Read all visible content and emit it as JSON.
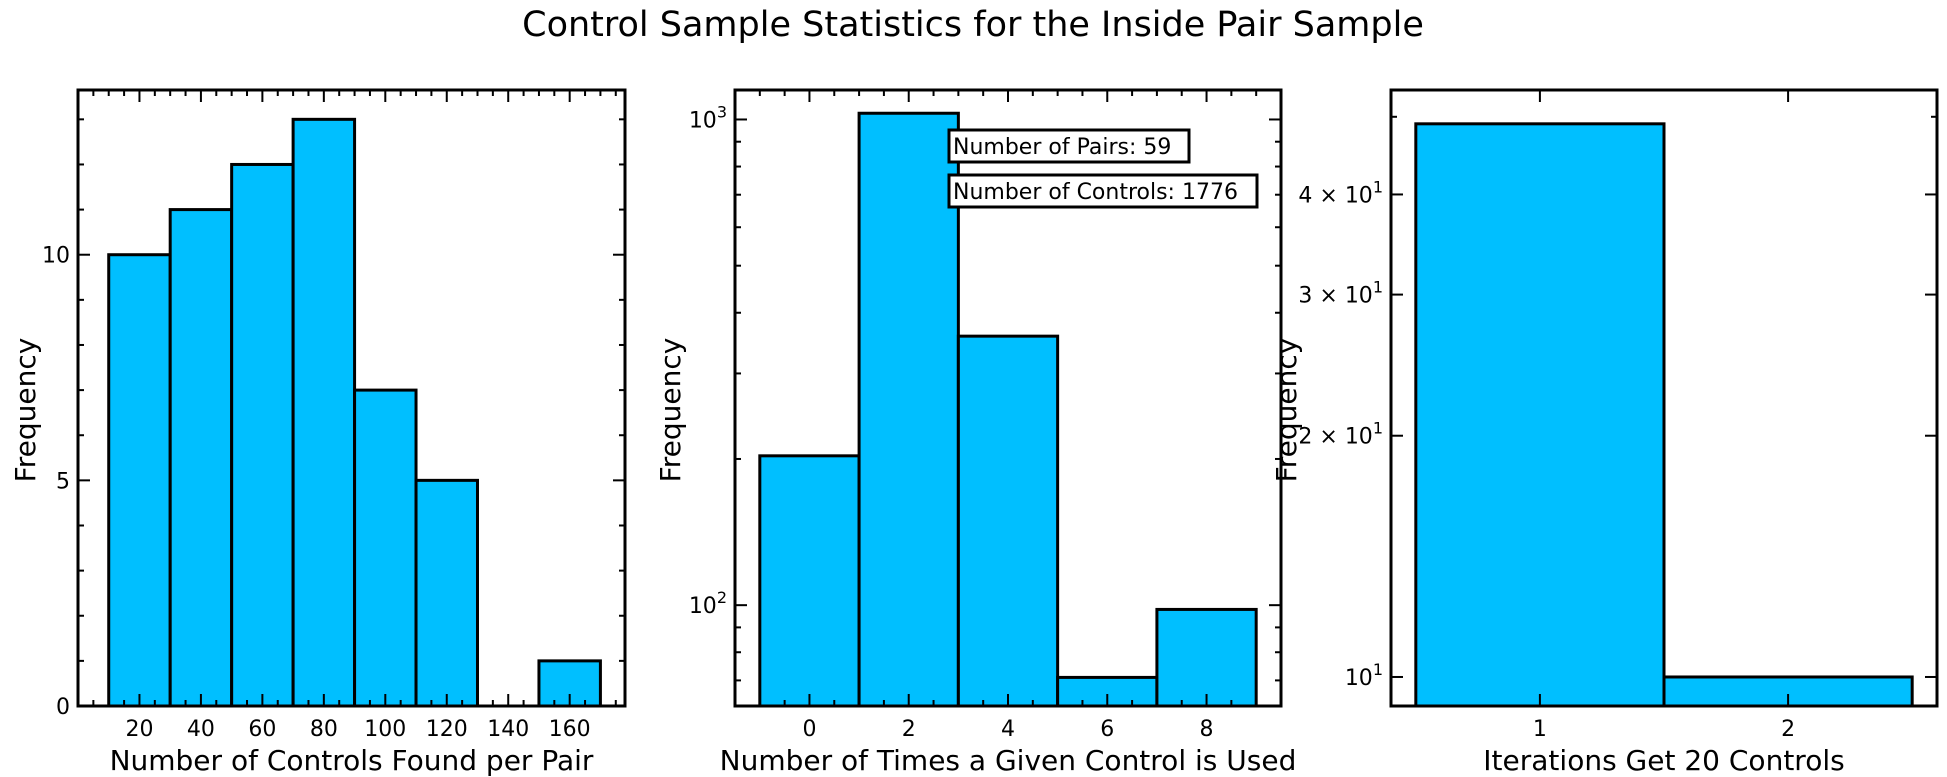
{
  "figure_title": "Control Sample Statistics for the Inside Pair Sample",
  "colors": {
    "bar_fill": "#00bfff",
    "bar_edge": "#000000",
    "background": "#ffffff"
  },
  "chart_data": [
    {
      "type": "bar",
      "subtype": "histogram",
      "xlabel": "Number of Controls Found per Pair",
      "ylabel": "Frequency",
      "yscale": "linear",
      "xlim": [
        0,
        178
      ],
      "ylim": [
        0,
        13.65
      ],
      "xticks": [
        20,
        40,
        60,
        80,
        100,
        120,
        140,
        160
      ],
      "xtick_labels": [
        "20",
        "40",
        "60",
        "80",
        "100",
        "120",
        "140",
        "160"
      ],
      "yticks": [
        0,
        5,
        10
      ],
      "ytick_labels": [
        "0",
        "5",
        "10"
      ],
      "bins": [
        {
          "x0": 10,
          "x1": 30,
          "count": 10
        },
        {
          "x0": 30,
          "x1": 50,
          "count": 11
        },
        {
          "x0": 50,
          "x1": 70,
          "count": 12
        },
        {
          "x0": 70,
          "x1": 90,
          "count": 13
        },
        {
          "x0": 90,
          "x1": 110,
          "count": 7
        },
        {
          "x0": 110,
          "x1": 130,
          "count": 5
        },
        {
          "x0": 130,
          "x1": 150,
          "count": 0
        },
        {
          "x0": 150,
          "x1": 170,
          "count": 1
        }
      ],
      "grid": false,
      "ticks": "inward, all four sides"
    },
    {
      "type": "bar",
      "subtype": "histogram",
      "xlabel": "Number of Times a Given Control is Used",
      "ylabel": "Frequency",
      "yscale": "log",
      "xlim": [
        -1.5,
        9.5
      ],
      "ylim": [
        62,
        1150
      ],
      "xticks": [
        0,
        2,
        4,
        6,
        8
      ],
      "xtick_labels": [
        "0",
        "2",
        "4",
        "6",
        "8"
      ],
      "yticks": [
        100,
        1000
      ],
      "ytick_labels": [
        {
          "base": "10",
          "exp": "2"
        },
        {
          "base": "10",
          "exp": "3"
        }
      ],
      "bins": [
        {
          "x0": -1,
          "x1": 1,
          "count": 203
        },
        {
          "x0": 1,
          "x1": 3,
          "count": 1030
        },
        {
          "x0": 3,
          "x1": 5,
          "count": 358
        },
        {
          "x0": 5,
          "x1": 7,
          "count": 71
        },
        {
          "x0": 7,
          "x1": 9,
          "count": 98
        }
      ],
      "annotations": [
        "Number of Pairs: 59",
        "Number of Controls: 1776"
      ],
      "grid": false,
      "ticks": "inward, all four sides"
    },
    {
      "type": "bar",
      "subtype": "histogram",
      "xlabel": "Iterations Get 20 Controls",
      "ylabel": "Frequency",
      "yscale": "log",
      "xlim": [
        0.4,
        2.6
      ],
      "ylim": [
        9.2,
        54
      ],
      "xticks": [
        1,
        2
      ],
      "xtick_labels": [
        "1",
        "2"
      ],
      "yticks": [
        10,
        20,
        30,
        40
      ],
      "ytick_labels": [
        {
          "base": "10",
          "exp": "1"
        },
        {
          "mant": "2",
          "base": "10",
          "exp": "1"
        },
        {
          "mant": "3",
          "base": "10",
          "exp": "1"
        },
        {
          "mant": "4",
          "base": "10",
          "exp": "1"
        }
      ],
      "bins": [
        {
          "x0": 0.5,
          "x1": 1.5,
          "count": 49
        },
        {
          "x0": 1.5,
          "x1": 2.5,
          "count": 10
        }
      ],
      "grid": false,
      "ticks": "inward, all four sides"
    }
  ]
}
